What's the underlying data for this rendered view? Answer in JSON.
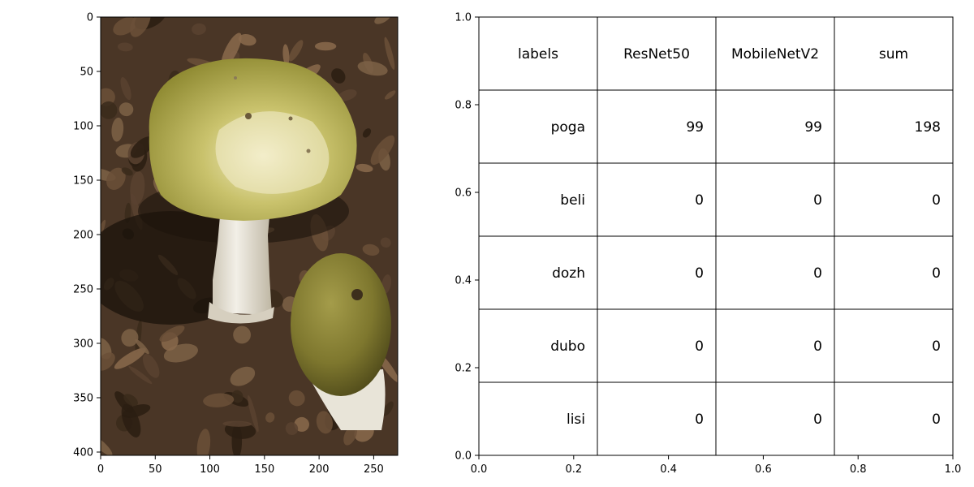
{
  "chart_data": [
    {
      "type": "image",
      "x": {
        "ticks": [
          0,
          50,
          100,
          150,
          200,
          250
        ],
        "lim": [
          0,
          272
        ]
      },
      "y": {
        "ticks": [
          0,
          50,
          100,
          150,
          200,
          250,
          300,
          350,
          400
        ],
        "lim": [
          403,
          0
        ]
      },
      "image": {
        "colors": {
          "soil_dark": "#2a1d12",
          "soil_mid": "#5a4330",
          "leaf": "#8a6a4c",
          "cap": "#b9b45a",
          "cap_light": "#ece7b8",
          "stem": "#ede9df",
          "shadow": "#171008"
        }
      }
    },
    {
      "type": "table",
      "x": {
        "ticks": [
          0.0,
          0.2,
          0.4,
          0.6,
          0.8,
          1.0
        ],
        "lim": [
          0,
          1
        ]
      },
      "y": {
        "ticks": [
          0.0,
          0.2,
          0.4,
          0.6,
          0.8,
          1.0
        ],
        "lim": [
          0,
          1
        ]
      },
      "columns": [
        "labels",
        "ResNet50",
        "MobileNetV2",
        "sum"
      ],
      "rows": [
        [
          "poga",
          "99",
          "99",
          "198"
        ],
        [
          "beli",
          "0",
          "0",
          "0"
        ],
        [
          "dozh",
          "0",
          "0",
          "0"
        ],
        [
          "dubo",
          "0",
          "0",
          "0"
        ],
        [
          "lisi",
          "0",
          "0",
          "0"
        ]
      ]
    }
  ]
}
